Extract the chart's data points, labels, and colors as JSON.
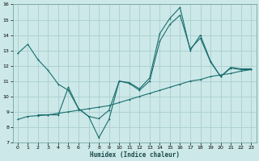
{
  "xlabel": "Humidex (Indice chaleur)",
  "background_color": "#cce8e8",
  "grid_color": "#aacece",
  "line_color": "#1a6e6e",
  "xlim": [
    -0.5,
    23.5
  ],
  "ylim": [
    7,
    16
  ],
  "xticks": [
    0,
    1,
    2,
    3,
    4,
    5,
    6,
    7,
    8,
    9,
    10,
    11,
    12,
    13,
    14,
    15,
    16,
    17,
    18,
    19,
    20,
    21,
    22,
    23
  ],
  "yticks": [
    7,
    8,
    9,
    10,
    11,
    12,
    13,
    14,
    15,
    16
  ],
  "series1_x": [
    0,
    1,
    2,
    3,
    4,
    5,
    6,
    7,
    8,
    9,
    10,
    11,
    12,
    13,
    14,
    15,
    16,
    17,
    18,
    19,
    20,
    21,
    22,
    23
  ],
  "series1_y": [
    12.8,
    13.4,
    12.4,
    11.7,
    10.8,
    10.4,
    9.2,
    8.7,
    7.3,
    8.5,
    11.0,
    10.9,
    10.5,
    11.2,
    14.1,
    15.1,
    15.8,
    13.0,
    14.0,
    12.3,
    11.3,
    11.9,
    11.8,
    11.8
  ],
  "series2_x": [
    0,
    1,
    2,
    3,
    4,
    5,
    6,
    7,
    8,
    9,
    10,
    11,
    12,
    13,
    14,
    15,
    16,
    17,
    18,
    19,
    20,
    21,
    22,
    23
  ],
  "series2_y": [
    8.5,
    8.7,
    8.75,
    8.8,
    8.9,
    9.0,
    9.1,
    9.2,
    9.3,
    9.4,
    9.6,
    9.8,
    10.0,
    10.2,
    10.4,
    10.6,
    10.8,
    11.0,
    11.1,
    11.3,
    11.4,
    11.5,
    11.65,
    11.75
  ],
  "series3_x": [
    2,
    3,
    4,
    5,
    6,
    7,
    8,
    9,
    10,
    11,
    12,
    13,
    14,
    15,
    16,
    17,
    18,
    19,
    20,
    21,
    22,
    23
  ],
  "series3_y": [
    8.8,
    8.8,
    8.8,
    10.6,
    9.2,
    8.7,
    8.55,
    9.1,
    11.0,
    10.85,
    10.4,
    11.0,
    13.6,
    14.7,
    15.3,
    13.1,
    13.8,
    12.25,
    11.3,
    11.85,
    11.75,
    11.75
  ]
}
